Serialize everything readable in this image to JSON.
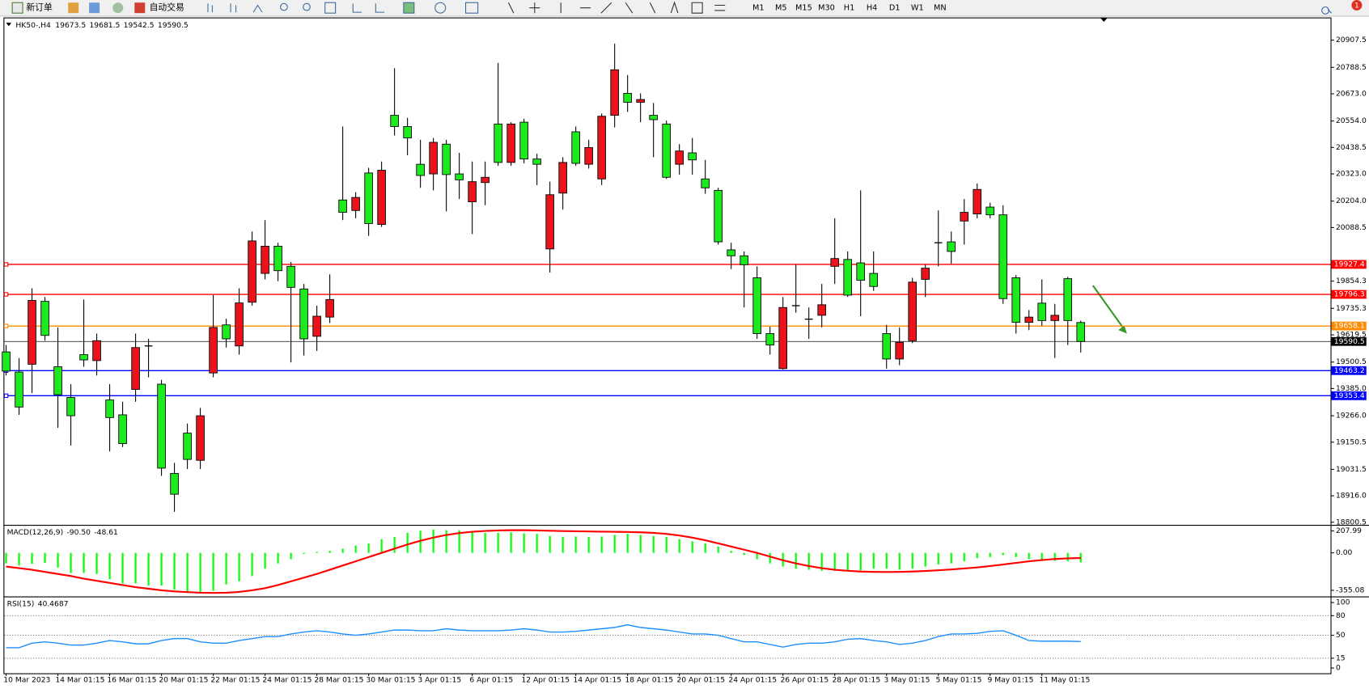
{
  "toolbar": {
    "new_order": "新订单",
    "auto_trading": "自动交易",
    "timeframes": [
      "M1",
      "M5",
      "M15",
      "M30",
      "H1",
      "H4",
      "D1",
      "W1",
      "MN"
    ],
    "badge": 1
  },
  "chart_data": [
    {
      "type": "candlestick",
      "symbol": "HK50-,H4",
      "categories": [
        "10 Mar 2023",
        null,
        null,
        null,
        "14 Mar 01:15",
        null,
        null,
        null,
        "16 Mar 01:15",
        null,
        null,
        null,
        "20 Mar 01:15",
        null,
        null,
        null,
        "22 Mar 01:15",
        null,
        null,
        null,
        "24 Mar 01:15",
        null,
        null,
        null,
        "28 Mar 01:15",
        null,
        null,
        null,
        "30 Mar 01:15",
        null,
        null,
        null,
        "3 Apr 01:15",
        null,
        null,
        null,
        "6 Apr 01:15",
        null,
        null,
        null,
        "12 Apr 01:15",
        null,
        null,
        null,
        "14 Apr 01:15",
        null,
        null,
        null,
        "18 Apr 01:15",
        null,
        null,
        null,
        "20 Apr 01:15",
        null,
        null,
        null,
        "24 Apr 01:15",
        null,
        null,
        null,
        "26 Apr 01:15",
        null,
        null,
        null,
        "28 Apr 01:15",
        null,
        null,
        null,
        "3 May 01:15",
        null,
        null,
        null,
        "5 May 01:15",
        null,
        null,
        null,
        "9 May 01:15",
        null,
        null,
        null,
        "11 May 01:15",
        null,
        null,
        null
      ],
      "ohlc": [
        [
          19545,
          19575,
          19442,
          19461
        ],
        [
          19457,
          19518,
          19270,
          19304
        ],
        [
          19491,
          19823,
          19365,
          19770
        ],
        [
          19766,
          19785,
          19594,
          19617
        ],
        [
          19480,
          19652,
          19213,
          19358
        ],
        [
          19346,
          19404,
          19136,
          19266
        ],
        [
          19533,
          19774,
          19480,
          19510
        ],
        [
          19507,
          19625,
          19442,
          19594
        ],
        [
          19335,
          19404,
          19110,
          19258
        ],
        [
          19270,
          19327,
          19129,
          19144
        ],
        [
          19381,
          19625,
          19327,
          19564
        ],
        [
          19571,
          19602,
          19434,
          19571
        ],
        [
          19404,
          19423,
          19003,
          19037
        ],
        [
          19014,
          19060,
          18846,
          18923
        ],
        [
          19190,
          19232,
          19033,
          19075
        ],
        [
          19071,
          19300,
          19033,
          19266
        ],
        [
          19453,
          19793,
          19434,
          19652
        ],
        [
          19663,
          19690,
          19564,
          19602
        ],
        [
          19571,
          19823,
          19533,
          19759
        ],
        [
          19762,
          20071,
          19747,
          20030
        ],
        [
          19888,
          20121,
          19862,
          20007
        ],
        [
          20007,
          20022,
          19854,
          19900
        ],
        [
          19919,
          19938,
          19499,
          19827
        ],
        [
          19820,
          19842,
          19529,
          19602
        ],
        [
          19613,
          19747,
          19549,
          19701
        ],
        [
          19697,
          19884,
          19671,
          19774
        ],
        [
          20209,
          20530,
          20121,
          20155
        ],
        [
          20163,
          20243,
          20129,
          20220
        ],
        [
          20327,
          20350,
          20052,
          20106
        ],
        [
          20102,
          20377,
          20091,
          20339
        ],
        [
          20579,
          20785,
          20491,
          20530
        ],
        [
          20530,
          20568,
          20404,
          20480
        ],
        [
          20365,
          20472,
          20262,
          20316
        ],
        [
          20323,
          20480,
          20251,
          20461
        ],
        [
          20453,
          20472,
          20159,
          20320
        ],
        [
          20323,
          20415,
          20213,
          20297
        ],
        [
          20201,
          20377,
          20060,
          20289
        ],
        [
          20285,
          20377,
          20186,
          20308
        ],
        [
          20541,
          20808,
          20358,
          20373
        ],
        [
          20373,
          20549,
          20358,
          20541
        ],
        [
          20549,
          20564,
          20369,
          20388
        ],
        [
          20388,
          20411,
          20274,
          20365
        ],
        [
          19995,
          20289,
          19892,
          20232
        ],
        [
          20239,
          20396,
          20167,
          20373
        ],
        [
          20507,
          20530,
          20358,
          20369
        ],
        [
          20365,
          20472,
          20346,
          20438
        ],
        [
          20301,
          20587,
          20274,
          20575
        ],
        [
          20579,
          20892,
          20526,
          20778
        ],
        [
          20675,
          20755,
          20594,
          20636
        ],
        [
          20636,
          20675,
          20549,
          20648
        ],
        [
          20579,
          20633,
          20396,
          20560
        ],
        [
          20541,
          20556,
          20301,
          20308
        ],
        [
          20365,
          20453,
          20320,
          20423
        ],
        [
          20415,
          20480,
          20320,
          20384
        ],
        [
          20301,
          20384,
          20236,
          20262
        ],
        [
          20251,
          20262,
          20014,
          20026
        ],
        [
          19991,
          20022,
          19907,
          19965
        ],
        [
          19965,
          19984,
          19739,
          19926
        ],
        [
          19869,
          19919,
          19602,
          19625
        ],
        [
          19625,
          19655,
          19533,
          19575
        ],
        [
          19472,
          19785,
          19468,
          19739
        ],
        [
          19747,
          19926,
          19716,
          19747
        ],
        [
          19688,
          19739,
          19602,
          19688
        ],
        [
          19705,
          19842,
          19652,
          19751
        ],
        [
          19919,
          20129,
          19842,
          19953
        ],
        [
          19949,
          19984,
          19785,
          19793
        ],
        [
          19934,
          20251,
          19701,
          19858
        ],
        [
          19888,
          19984,
          19812,
          19831
        ],
        [
          19625,
          19663,
          19472,
          19514
        ],
        [
          19514,
          19652,
          19487,
          19587
        ],
        [
          19594,
          19869,
          19583,
          19850
        ],
        [
          19862,
          19926,
          19785,
          19911
        ],
        [
          20022,
          20163,
          19919,
          20022
        ],
        [
          20026,
          20071,
          19930,
          19984
        ],
        [
          20117,
          20213,
          20014,
          20155
        ],
        [
          20148,
          20281,
          20129,
          20255
        ],
        [
          20178,
          20197,
          20129,
          20144
        ],
        [
          20144,
          20186,
          19755,
          19778
        ],
        [
          19869,
          19881,
          19625,
          19674
        ],
        [
          19674,
          19728,
          19640,
          19697
        ],
        [
          19758,
          19862,
          19659,
          19682
        ],
        [
          19682,
          19755,
          19518,
          19705
        ],
        [
          19865,
          19873,
          19575,
          19682
        ],
        [
          19673.5,
          19681.5,
          19542.5,
          19590.5
        ]
      ],
      "up_color": "#e8141c",
      "down_color": "#1ee81e",
      "ylim": [
        18793,
        20999
      ],
      "yticks": [
        20907.5,
        20788.5,
        {
          "value": 20673.0,
          "label": "20673.0"
        },
        {
          "value": 20554.0,
          "label": "20554.0"
        },
        20438.5,
        {
          "value": 20323.0,
          "label": "20323.0"
        },
        {
          "value": 20204.0,
          "label": "20204.0"
        },
        20088.5,
        19854.3,
        19735.3,
        19619.5,
        19500.5,
        {
          "value": 19385.0,
          "label": "19385.0"
        },
        {
          "value": 19266.0,
          "label": "19266.0"
        },
        19150.5,
        19031.5,
        {
          "value": 18916.0,
          "label": "18916.0"
        },
        18800.5
      ],
      "levels": [
        {
          "value": 19927.4,
          "color": "#ff0000"
        },
        {
          "value": 19796.3,
          "color": "#ff0000"
        },
        {
          "value": 19658.1,
          "color": "#ff8c00"
        },
        {
          "value": 19463.2,
          "color": "#0000ff"
        },
        {
          "value": 19353.4,
          "color": "#0000ff"
        }
      ]
    },
    {
      "type": "macd",
      "name": "MACD(12,26,9)",
      "readout": [
        {
          "value": -90.5,
          "label": "-90.50"
        },
        -48.61
      ],
      "histogram": {
        "color": "#00ff00",
        "values": [
          -100,
          -120,
          -105,
          -95,
          -140,
          -190,
          -190,
          -200,
          -250,
          -290,
          -290,
          -310,
          -310,
          -350,
          -380,
          -370,
          -360,
          -300,
          -270,
          -220,
          -150,
          -100,
          -60,
          -10,
          10,
          20,
          40,
          70,
          90,
          130,
          150,
          190,
          210,
          220,
          215,
          215,
          200,
          190,
          190,
          195,
          185,
          180,
          160,
          150,
          155,
          150,
          155,
          170,
          180,
          170,
          160,
          150,
          130,
          110,
          90,
          60,
          20,
          -20,
          -60,
          -100,
          -130,
          -150,
          -160,
          -170,
          -170,
          -175,
          -165,
          -150,
          -150,
          -160,
          -150,
          -130,
          -110,
          -100,
          -80,
          -50,
          -40,
          -20,
          -40,
          -60,
          -70,
          -75,
          -80,
          -90.5
        ]
      },
      "signal": {
        "color": "#ff0000",
        "values": [
          -130,
          -145,
          -160,
          -180,
          -200,
          -220,
          -245,
          -265,
          -285,
          -305,
          -325,
          -340,
          -355,
          -365,
          -372,
          -378,
          -380,
          -378,
          -370,
          -355,
          -335,
          -305,
          -270,
          -235,
          -200,
          -160,
          -120,
          -80,
          -40,
          0,
          40,
          80,
          115,
          145,
          170,
          188,
          200,
          208,
          213,
          215,
          215,
          213,
          210,
          207,
          205,
          203,
          201,
          200,
          198,
          195,
          190,
          180,
          165,
          145,
          120,
          90,
          60,
          30,
          0,
          -35,
          -70,
          -100,
          -125,
          -145,
          -160,
          -170,
          -177,
          -180,
          -181,
          -180,
          -177,
          -172,
          -165,
          -157,
          -148,
          -138,
          -125,
          -110,
          -95,
          -80,
          -68,
          -58,
          -52,
          -48.61
        ]
      },
      "ylim": [
        -396.5,
        249.4
      ],
      "yticks": [
        207.99,
        {
          "value": 0,
          "label": "0.00"
        },
        -355.08
      ]
    },
    {
      "type": "line",
      "name": "RSI(15)",
      "readout": [
        40.4687
      ],
      "color": "#1e90ff",
      "values": [
        31,
        31,
        38,
        40,
        38,
        35,
        35,
        38,
        42,
        40,
        37,
        37,
        42,
        45,
        45,
        40,
        38,
        38,
        42,
        45,
        48,
        48,
        52,
        55,
        57,
        55,
        52,
        50,
        52,
        55,
        58,
        58,
        57,
        57,
        60,
        58,
        57,
        57,
        57,
        58,
        60,
        58,
        55,
        55,
        56,
        58,
        60,
        62,
        66,
        62,
        60,
        58,
        55,
        52,
        52,
        50,
        45,
        40,
        40,
        36,
        32,
        36,
        38,
        38,
        40,
        44,
        45,
        42,
        40,
        36,
        38,
        42,
        48,
        52,
        52,
        53,
        56,
        57,
        50,
        42,
        41,
        41,
        41,
        40.4687
      ],
      "ylim": [
        -6.7,
        106.7
      ],
      "yticks": [
        100,
        80,
        50,
        15,
        0
      ],
      "grid": true
    }
  ]
}
